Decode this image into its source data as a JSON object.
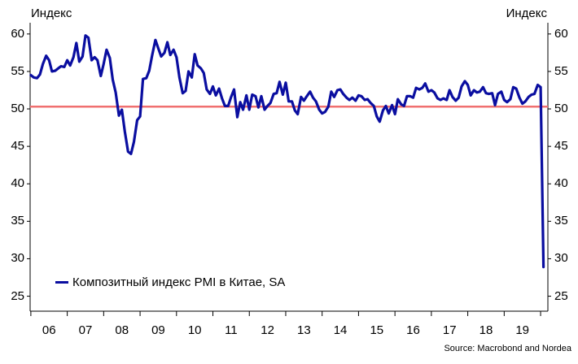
{
  "chart_data": {
    "type": "line",
    "left_axis_title": "Индекс",
    "right_axis_title": "Индекс",
    "y_ticks": [
      25,
      30,
      35,
      40,
      45,
      50,
      55,
      60
    ],
    "ylim": [
      23,
      61.5
    ],
    "x_tick_labels": [
      "06",
      "07",
      "08",
      "09",
      "10",
      "11",
      "12",
      "13",
      "14",
      "15",
      "16",
      "17",
      "18",
      "19"
    ],
    "xlim": [
      2005.98,
      2020.2
    ],
    "reference_line": {
      "value": 50.3,
      "color": "#f07070"
    },
    "grid": false,
    "legend_position": "bottom-left",
    "source": "Source: Macrobond and Nordea",
    "series": [
      {
        "name": "Композитный индекс PMI в Китае, SA",
        "color": "#0a0ea0",
        "x": [
          2006.0,
          2006.08,
          2006.17,
          2006.25,
          2006.33,
          2006.42,
          2006.5,
          2006.58,
          2006.67,
          2006.75,
          2006.83,
          2006.92,
          2007.0,
          2007.08,
          2007.17,
          2007.25,
          2007.33,
          2007.42,
          2007.5,
          2007.58,
          2007.67,
          2007.75,
          2007.83,
          2007.92,
          2008.0,
          2008.08,
          2008.17,
          2008.25,
          2008.33,
          2008.42,
          2008.5,
          2008.58,
          2008.67,
          2008.75,
          2008.83,
          2008.92,
          2009.0,
          2009.08,
          2009.17,
          2009.25,
          2009.33,
          2009.42,
          2009.5,
          2009.58,
          2009.67,
          2009.75,
          2009.83,
          2009.92,
          2010.0,
          2010.08,
          2010.17,
          2010.25,
          2010.33,
          2010.42,
          2010.5,
          2010.58,
          2010.67,
          2010.75,
          2010.83,
          2010.92,
          2011.0,
          2011.08,
          2011.17,
          2011.25,
          2011.33,
          2011.42,
          2011.5,
          2011.58,
          2011.67,
          2011.75,
          2011.83,
          2011.92,
          2012.0,
          2012.08,
          2012.17,
          2012.25,
          2012.33,
          2012.42,
          2012.5,
          2012.58,
          2012.67,
          2012.75,
          2012.83,
          2012.92,
          2013.0,
          2013.08,
          2013.17,
          2013.25,
          2013.33,
          2013.42,
          2013.5,
          2013.58,
          2013.67,
          2013.75,
          2013.83,
          2013.92,
          2014.0,
          2014.08,
          2014.17,
          2014.25,
          2014.33,
          2014.42,
          2014.5,
          2014.58,
          2014.67,
          2014.75,
          2014.83,
          2014.92,
          2015.0,
          2015.08,
          2015.17,
          2015.25,
          2015.33,
          2015.42,
          2015.5,
          2015.58,
          2015.67,
          2015.75,
          2015.83,
          2015.92,
          2016.0,
          2016.08,
          2016.17,
          2016.25,
          2016.33,
          2016.42,
          2016.5,
          2016.58,
          2016.67,
          2016.75,
          2016.83,
          2016.92,
          2017.0,
          2017.08,
          2017.17,
          2017.25,
          2017.33,
          2017.42,
          2017.5,
          2017.58,
          2017.67,
          2017.75,
          2017.83,
          2017.92,
          2018.0,
          2018.08,
          2018.17,
          2018.25,
          2018.33,
          2018.42,
          2018.5,
          2018.58,
          2018.67,
          2018.75,
          2018.83,
          2018.92,
          2019.0,
          2019.08,
          2019.17,
          2019.25,
          2019.33,
          2019.42,
          2019.5,
          2019.58,
          2019.67,
          2019.75,
          2019.83,
          2019.92,
          2020.0,
          2020.08
        ],
        "values": [
          54.5,
          54.2,
          54.1,
          54.6,
          56.0,
          57.1,
          56.5,
          55.0,
          55.1,
          55.4,
          55.7,
          55.6,
          56.5,
          55.8,
          56.9,
          58.8,
          56.3,
          57.0,
          59.8,
          59.5,
          56.5,
          56.9,
          56.5,
          54.4,
          56.0,
          57.9,
          56.8,
          53.9,
          52.2,
          49.1,
          49.9,
          47.0,
          44.3,
          44.0,
          45.6,
          48.5,
          49.0,
          54.0,
          54.1,
          55.1,
          57.1,
          59.2,
          58.1,
          57.0,
          57.5,
          58.9,
          57.2,
          57.9,
          56.9,
          54.2,
          52.1,
          52.4,
          55.0,
          54.2,
          57.3,
          55.8,
          55.4,
          54.8,
          52.6,
          52.0,
          53.0,
          51.8,
          52.7,
          51.4,
          50.4,
          50.4,
          51.6,
          52.6,
          48.9,
          50.9,
          49.9,
          51.8,
          49.9,
          51.9,
          51.7,
          50.2,
          51.7,
          49.9,
          50.4,
          50.8,
          52.0,
          52.1,
          53.6,
          51.9,
          53.5,
          51.0,
          51.0,
          49.8,
          49.3,
          51.6,
          51.1,
          51.7,
          52.3,
          51.5,
          51.0,
          49.9,
          49.4,
          49.6,
          50.3,
          52.3,
          51.6,
          52.5,
          52.6,
          52.0,
          51.5,
          51.2,
          51.5,
          51.1,
          51.8,
          51.7,
          51.2,
          51.3,
          50.8,
          50.4,
          49.0,
          48.3,
          49.8,
          50.4,
          49.4,
          50.5,
          49.3,
          51.3,
          50.6,
          50.4,
          51.7,
          51.7,
          51.5,
          52.8,
          52.6,
          52.8,
          53.4,
          52.3,
          52.5,
          52.2,
          51.4,
          51.2,
          51.4,
          51.2,
          52.5,
          51.6,
          51.1,
          51.5,
          53.0,
          53.7,
          53.2,
          51.8,
          52.5,
          52.2,
          52.3,
          52.9,
          52.1,
          52.0,
          52.1,
          50.5,
          52.0,
          52.3,
          51.2,
          50.9,
          51.3,
          52.9,
          52.7,
          51.5,
          50.7,
          51.0,
          51.6,
          51.9,
          52.0,
          53.2,
          52.9,
          28.9
        ]
      }
    ]
  }
}
